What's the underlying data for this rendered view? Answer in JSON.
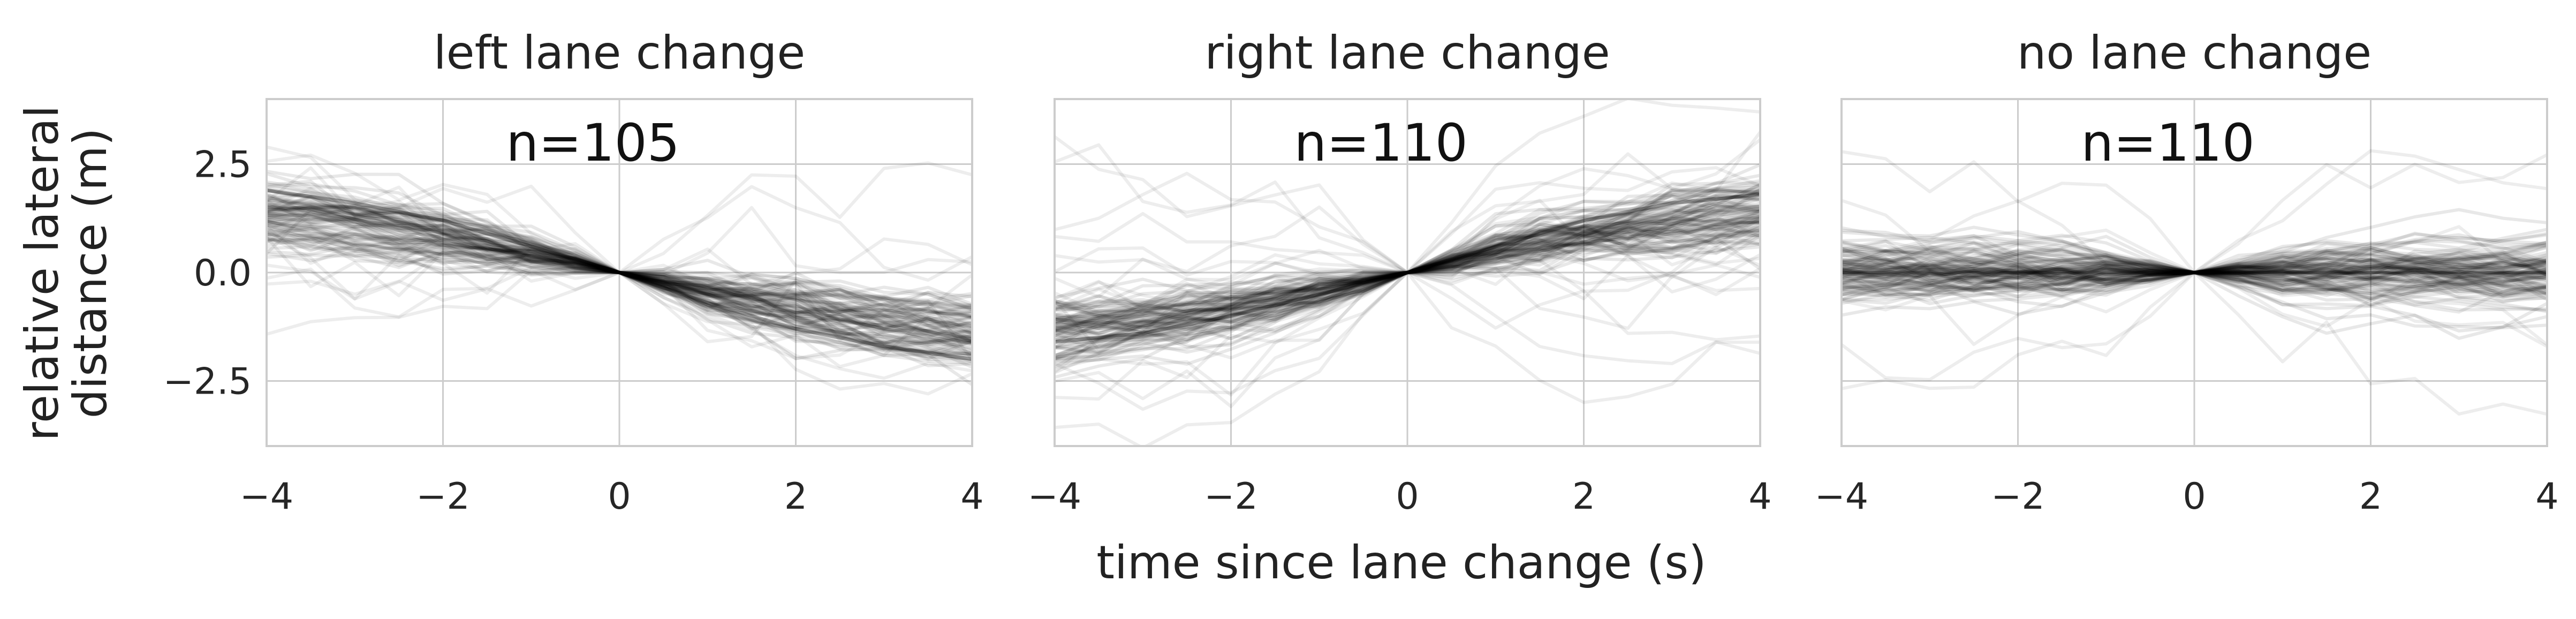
{
  "chart_data": [
    {
      "type": "line",
      "title": "left lane change",
      "annotation": "n=105",
      "n_trajectories": 105,
      "trend": -1,
      "xlim": [
        -4,
        4
      ],
      "ylim": [
        -4,
        4
      ],
      "xticks": [
        "−4",
        "−2",
        "0",
        "2",
        "4"
      ],
      "yticks": [
        "2.5",
        "0.0",
        "−2.5"
      ],
      "ylabel": "relative lateral distance (m)",
      "grid": true,
      "series": [
        {
          "x": [
            -4,
            -3,
            -2,
            -1,
            0,
            1,
            2,
            3,
            4
          ],
          "y": [
            1.9,
            1.6,
            1.2,
            0.6,
            0.0,
            -0.7,
            -1.3,
            -1.7,
            -2.0
          ]
        }
      ]
    },
    {
      "type": "line",
      "title": "right lane change",
      "annotation": "n=110",
      "n_trajectories": 110,
      "trend": 1,
      "xlim": [
        -4,
        4
      ],
      "ylim": [
        -4,
        4
      ],
      "xticks": [
        "−4",
        "−2",
        "0",
        "2",
        "4"
      ],
      "yticks": [
        "2.5",
        "0.0",
        "−2.5"
      ],
      "grid": true,
      "series": [
        {
          "x": [
            -4,
            -3,
            -2,
            -1,
            0,
            1,
            2,
            3,
            4
          ],
          "y": [
            -1.6,
            -1.4,
            -1.0,
            -0.5,
            0.0,
            0.6,
            1.2,
            1.6,
            1.8
          ]
        }
      ]
    },
    {
      "type": "line",
      "title": "no lane change",
      "annotation": "n=110",
      "n_trajectories": 110,
      "trend": 0,
      "xlim": [
        -4,
        4
      ],
      "ylim": [
        -4,
        4
      ],
      "xticks": [
        "−4",
        "−2",
        "0",
        "2",
        "4"
      ],
      "yticks": [
        "2.5",
        "0.0",
        "−2.5"
      ],
      "grid": true,
      "series": [
        {
          "x": [
            -4,
            -3,
            -2,
            -1,
            0,
            1,
            2,
            3,
            4
          ],
          "y": [
            0.0,
            0.0,
            0.0,
            0.0,
            0.0,
            0.0,
            0.0,
            0.0,
            0.0
          ]
        }
      ]
    }
  ],
  "figure": {
    "xlabel": "time since lane change (s)",
    "ylabel_line1": "relative lateral",
    "ylabel_line2": "distance (m)",
    "colors": {
      "trajectory": "#000000",
      "grid": "#cccccc",
      "spine": "#cccccc",
      "text": "#262626"
    }
  }
}
